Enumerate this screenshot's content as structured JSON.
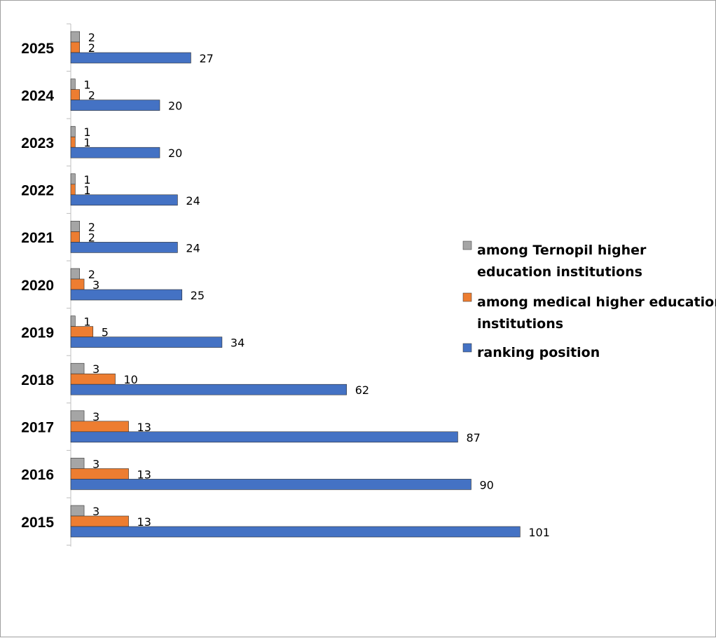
{
  "chart_data": {
    "type": "bar",
    "orientation": "horizontal",
    "categories": [
      "2025",
      "2024",
      "2023",
      "2022",
      "2021",
      "2020",
      "2019",
      "2018",
      "2017",
      "2016",
      "2015"
    ],
    "series": [
      {
        "name": "among Ternopil  higher education institutions",
        "legend_lines": [
          "among Ternopil  higher",
          "education institutions"
        ],
        "color": "#a5a5a5",
        "values": [
          2,
          1,
          1,
          1,
          2,
          2,
          1,
          3,
          3,
          3,
          3
        ]
      },
      {
        "name": "among medical higher education institutions",
        "legend_lines": [
          "among medical higher education",
          "institutions"
        ],
        "color": "#ed7d31",
        "values": [
          2,
          2,
          1,
          1,
          2,
          3,
          5,
          10,
          13,
          13,
          13
        ]
      },
      {
        "name": "ranking position",
        "legend_lines": [
          "ranking position"
        ],
        "color": "#4472c4",
        "values": [
          27,
          20,
          20,
          24,
          24,
          25,
          34,
          62,
          87,
          90,
          101
        ]
      }
    ],
    "xlim": [
      0,
      101
    ],
    "grid": false,
    "legend_position": "right",
    "title": "",
    "xlabel": "",
    "ylabel": ""
  }
}
